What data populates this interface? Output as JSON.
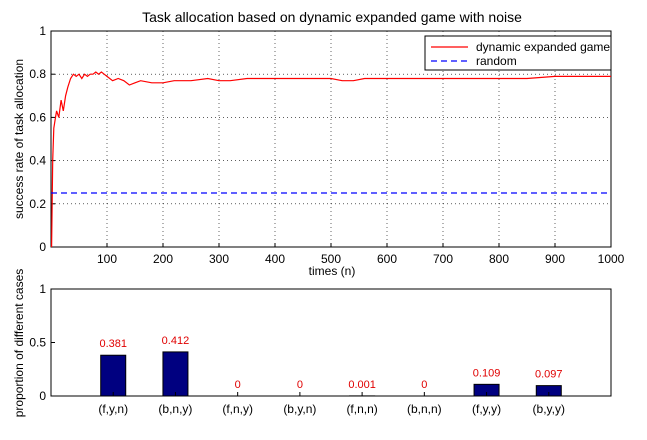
{
  "chart_data": [
    {
      "type": "line",
      "title": "Task allocation based on dynamic expanded game with noise",
      "xlabel": "times (n)",
      "ylabel": "success rate of task allocation",
      "xlim": [
        0,
        1000
      ],
      "ylim": [
        0,
        1
      ],
      "xticks": [
        "100",
        "200",
        "300",
        "400",
        "500",
        "600",
        "700",
        "800",
        "900",
        "1000"
      ],
      "yticks": [
        "0",
        "0.2",
        "0.4",
        "0.6",
        "0.8",
        "1"
      ],
      "grid": true,
      "legend_position": "top-right",
      "series": [
        {
          "name": "dynamic expanded game",
          "color": "#ff0000",
          "style": "solid",
          "x": [
            1,
            3,
            5,
            8,
            10,
            14,
            18,
            22,
            26,
            30,
            35,
            40,
            45,
            50,
            55,
            60,
            65,
            70,
            75,
            80,
            85,
            90,
            95,
            100,
            110,
            120,
            130,
            140,
            150,
            160,
            180,
            200,
            220,
            250,
            280,
            300,
            320,
            350,
            380,
            400,
            430,
            460,
            480,
            500,
            520,
            540,
            560,
            600,
            650,
            700,
            750,
            800,
            850,
            900,
            950,
            1000
          ],
          "y": [
            0.0,
            0.4,
            0.55,
            0.6,
            0.63,
            0.6,
            0.68,
            0.63,
            0.7,
            0.74,
            0.78,
            0.8,
            0.79,
            0.8,
            0.78,
            0.8,
            0.79,
            0.8,
            0.8,
            0.81,
            0.8,
            0.81,
            0.8,
            0.79,
            0.77,
            0.78,
            0.77,
            0.75,
            0.76,
            0.77,
            0.76,
            0.76,
            0.77,
            0.77,
            0.78,
            0.77,
            0.77,
            0.78,
            0.78,
            0.78,
            0.78,
            0.78,
            0.78,
            0.78,
            0.77,
            0.77,
            0.78,
            0.78,
            0.78,
            0.78,
            0.78,
            0.78,
            0.78,
            0.79,
            0.79,
            0.79
          ]
        },
        {
          "name": "random",
          "color": "#0000ff",
          "style": "dashed",
          "x": [
            0,
            1000
          ],
          "y": [
            0.25,
            0.25
          ]
        }
      ]
    },
    {
      "type": "bar",
      "ylabel": "proportion of different cases",
      "categories": [
        "(f,y,n)",
        "(b,n,y)",
        "(f,n,y)",
        "(b,y,n)",
        "(f,n,n)",
        "(b,n,n)",
        "(f,y,y)",
        "(b,y,y)"
      ],
      "values": [
        0.381,
        0.412,
        0,
        0,
        0.001,
        0,
        0.109,
        0.097
      ],
      "value_labels": [
        "0.381",
        "0.412",
        "0",
        "0",
        "0.001",
        "0",
        "0.109",
        "0.097"
      ],
      "ylim": [
        0,
        1
      ],
      "yticks": [
        "0",
        "0.5",
        "1"
      ],
      "grid": false,
      "bar_color": "#000080",
      "label_color": "#e00000"
    }
  ]
}
